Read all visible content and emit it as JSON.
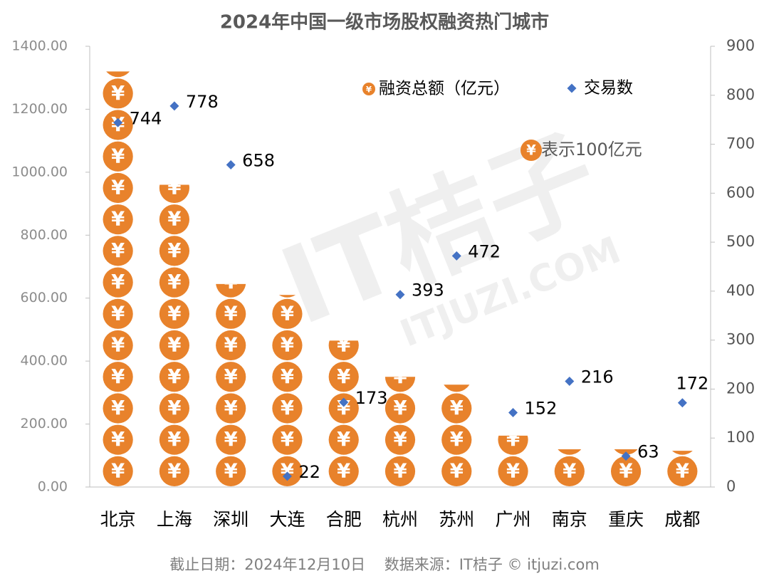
{
  "chart_data": {
    "type": "pictograph",
    "title": "2024年中国一级市场股权融资热门城市",
    "categories": [
      "北京",
      "上海",
      "深圳",
      "大连",
      "合肥",
      "杭州",
      "苏州",
      "广州",
      "南京",
      "重庆",
      "成都"
    ],
    "series": [
      {
        "name": "融资总额（亿元）",
        "color": "#e8822b",
        "symbol": "¥",
        "unit_value": 100,
        "values": [
          1320,
          960,
          645,
          610,
          465,
          350,
          325,
          163,
          120,
          120,
          115
        ]
      },
      {
        "name": "交易数",
        "color": "#4472c4",
        "axis": "y2",
        "values": [
          744,
          778,
          658,
          22,
          173,
          393,
          472,
          152,
          216,
          63,
          172
        ]
      }
    ],
    "ylim": [
      0,
      1400
    ],
    "yticks": [
      {
        "value": 0,
        "label": "0.00"
      },
      {
        "value": 200,
        "label": "200.00"
      },
      {
        "value": 400,
        "label": "400.00"
      },
      {
        "value": 600,
        "label": "600.00"
      },
      {
        "value": 800,
        "label": "800.00"
      },
      {
        "value": 1000,
        "label": "1000.00"
      },
      {
        "value": 1200,
        "label": "1200.00"
      },
      {
        "value": 1400,
        "label": "1400.00"
      }
    ],
    "y2lim": [
      0,
      900
    ],
    "y2ticks": [
      0,
      100,
      200,
      300,
      400,
      500,
      600,
      700,
      800,
      900
    ],
    "annotation": "表示100亿元",
    "footer": "截止日期：2024年12月10日    数据来源：IT桔子 © itjuzi.com",
    "watermark": [
      "IT桔子",
      "ITJUZI.COM"
    ]
  }
}
